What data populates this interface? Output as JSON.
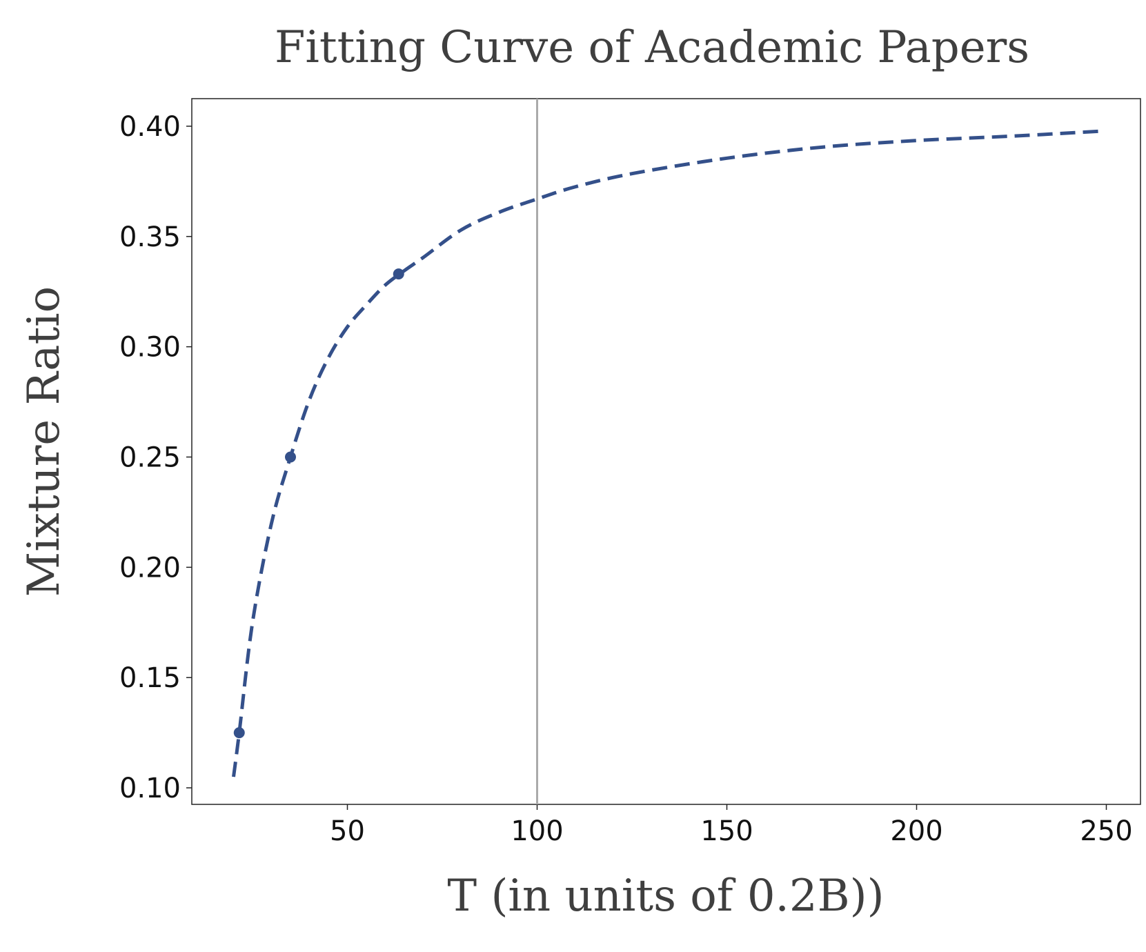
{
  "chart_data": {
    "type": "line",
    "title": "Fitting Curve of Academic Papers",
    "xlabel": "T (in units of 0.2B))",
    "ylabel": "Mixture Ratio",
    "xlim": [
      9,
      259
    ],
    "ylim": [
      0.0925,
      0.4125
    ],
    "x_ticks": [
      50,
      100,
      150,
      200,
      250
    ],
    "y_ticks": [
      0.1,
      0.15,
      0.2,
      0.25,
      0.3,
      0.35,
      0.4
    ],
    "x_tick_labels": [
      "50",
      "100",
      "150",
      "200",
      "250"
    ],
    "y_tick_labels": [
      "0.10",
      "0.15",
      "0.20",
      "0.25",
      "0.30",
      "0.35",
      "0.40"
    ],
    "grid": false,
    "series": [
      {
        "style": "dashed",
        "color": "#34508a",
        "x": [
          20,
          21.5,
          25,
          30,
          35,
          40,
          45,
          50,
          55,
          60,
          65,
          70,
          80,
          90,
          100,
          110,
          125,
          150,
          175,
          200,
          225,
          249
        ],
        "y": [
          0.105,
          0.125,
          0.175,
          0.22,
          0.25,
          0.276,
          0.295,
          0.309,
          0.319,
          0.328,
          0.3345,
          0.3405,
          0.353,
          0.361,
          0.367,
          0.3725,
          0.3785,
          0.3855,
          0.3905,
          0.3935,
          0.3955,
          0.3978
        ]
      },
      {
        "style": "markers",
        "color": "#34508a",
        "x": [
          21.5,
          35,
          63.5
        ],
        "y": [
          0.125,
          0.25,
          0.333
        ]
      }
    ],
    "vertical_line": {
      "x": 100,
      "color": "#aaaaaa"
    }
  }
}
